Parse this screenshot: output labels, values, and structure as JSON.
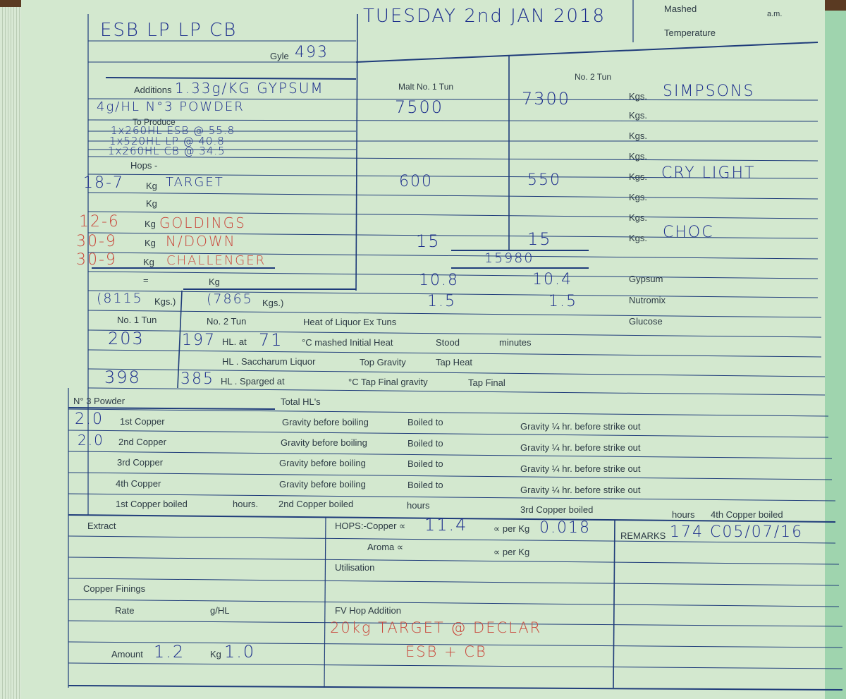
{
  "printed": {
    "mashed": "Mashed",
    "am": "a.m.",
    "temperature": "Temperature",
    "gyle": "Gyle",
    "additions": "Additions",
    "to_produce": "To Produce",
    "hops": "Hops -",
    "kg": "Kg",
    "kgs": "Kgs.",
    "equals": "=",
    "malt_no1_tun": "Malt No. 1 Tun",
    "no2_tun": "No. 2 Tun",
    "gypsum": "Gypsum",
    "nutromix": "Nutromix",
    "glucose": "Glucose",
    "kgs_paren_open": "(",
    "kgs_paren_close": "Kgs.)",
    "no1_tun": "No. 1 Tun",
    "no2_tun_b": "No. 2 Tun",
    "heat_of_liquor": "Heat of Liquor Ex Tuns",
    "hl_at": "HL. at",
    "c_mashed_initial": "°C mashed Initial Heat",
    "stood": "Stood",
    "minutes": "minutes",
    "hl_saccharum": "HL . Saccharum Liquor",
    "top_gravity": "Top Gravity",
    "tap_heat": "Tap Heat",
    "hl_sparged": "HL . Sparged at",
    "c_tap_final": "°C Tap Final gravity",
    "tap_final": "Tap Final",
    "no3_powder": "N° 3 Powder",
    "total_hls": "Total HL's",
    "coppers": [
      "1st Copper",
      "2nd Copper",
      "3rd Copper",
      "4th Copper"
    ],
    "gravity_before_boiling": "Gravity before boiling",
    "boiled_to": "Boiled to",
    "gravity_quarter": "Gravity ¼ hr. before strike out",
    "first_copper_boiled": "1st Copper boiled",
    "hours": "hours.",
    "second_copper_boiled": "2nd Copper boiled",
    "hours2": "hours",
    "third_copper_boiled": "3rd Copper boiled",
    "fourth_copper_boiled": "4th Copper boiled",
    "extract": "Extract",
    "hops_copper": "HOPS:-Copper ∝",
    "alpha_per_kg": "∝ per Kg",
    "aroma": "Aroma ∝",
    "utilisation": "Utilisation",
    "remarks": "REMARKS",
    "copper_finings": "Copper Finings",
    "rate": "Rate",
    "g_hl": "g/HL",
    "fv_hop_addition": "FV Hop Addition",
    "amount": "Amount"
  },
  "handwritten": {
    "brew": "ESB LP LP CB",
    "date": "TUESDAY 2nd JAN 2018",
    "gyle": "493",
    "additions": "1.33g/KG GYPSUM",
    "powder": "4g/HL N°3 POWDER",
    "produce": [
      "1x260HL ESB @ 55.8",
      "1x520HL LP @ 40.8",
      "1x260HL CB @ 34.5"
    ],
    "hops": [
      {
        "kg": "18-7",
        "name": "TARGET",
        "color": "blue"
      },
      {
        "kg": "12-6",
        "name": "GOLDINGS",
        "color": "red"
      },
      {
        "kg": "30-9",
        "name": "N/DOWN",
        "color": "red"
      },
      {
        "kg": "30-9",
        "name": "CHALLENGER",
        "color": "red"
      }
    ],
    "tun1_malt": "7500",
    "tun2_malt": "7300",
    "malt1_name": "SIMPSONS",
    "tun1_crystal": "600",
    "tun2_crystal": "550",
    "malt2_name": "CRY LIGHT",
    "tun1_choc": "15",
    "tun2_choc": "15",
    "malt3_name": "CHOC",
    "malt_total": "15980",
    "gypsum1": "10.8",
    "gypsum2": "10.4",
    "nutromix1": "1.5",
    "nutromix2": "1.5",
    "tun1_kgs": "8115",
    "tun2_kgs": "7865",
    "tun1_hl": "203",
    "tun2_hl": "197",
    "mash_temp": "71",
    "sparge1": "398",
    "sparge2": "385",
    "copper1_powder": "2.0",
    "copper2_powder": "2.0",
    "copper_alpha": "11.4",
    "alpha_per_kg": "0.018",
    "remarks": "174 C05/07/16",
    "amount1": "1.2",
    "amount2": "1.0",
    "fv_hop_line1": "20kg TARGET @ DECLAR",
    "fv_hop_line2": "ESB + CB"
  },
  "colors": {
    "paper": "#d3e8cf",
    "ink_blue": "#1b2d8c",
    "ink_red": "#c9473b",
    "rule": "#1f3c7a"
  }
}
